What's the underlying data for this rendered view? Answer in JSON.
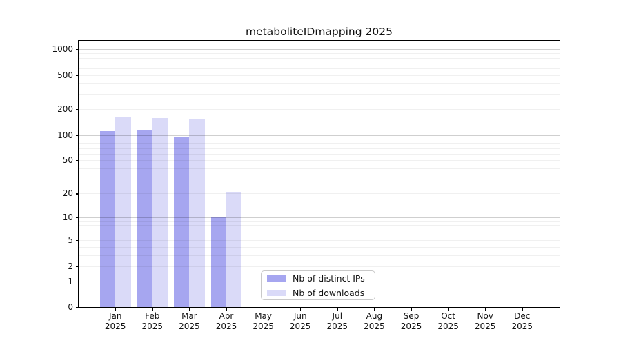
{
  "chart_data": {
    "type": "bar",
    "title": "metaboliteIDmapping 2025",
    "categories": [
      {
        "month": "Jan",
        "year": "2025"
      },
      {
        "month": "Feb",
        "year": "2025"
      },
      {
        "month": "Mar",
        "year": "2025"
      },
      {
        "month": "Apr",
        "year": "2025"
      },
      {
        "month": "May",
        "year": "2025"
      },
      {
        "month": "Jun",
        "year": "2025"
      },
      {
        "month": "Jul",
        "year": "2025"
      },
      {
        "month": "Aug",
        "year": "2025"
      },
      {
        "month": "Sep",
        "year": "2025"
      },
      {
        "month": "Oct",
        "year": "2025"
      },
      {
        "month": "Nov",
        "year": "2025"
      },
      {
        "month": "Dec",
        "year": "2025"
      }
    ],
    "series": [
      {
        "name": "Nb of distinct IPs",
        "color": "#a6a6f0",
        "values": [
          110,
          112,
          94,
          10,
          0,
          0,
          0,
          0,
          0,
          0,
          0,
          0
        ]
      },
      {
        "name": "Nb of downloads",
        "color": "#dadaf8",
        "values": [
          165,
          157,
          154,
          21,
          0,
          0,
          0,
          0,
          0,
          0,
          0,
          0
        ]
      }
    ],
    "y_axis": {
      "scale": "log1p",
      "ticks": [
        0,
        1,
        2,
        5,
        10,
        20,
        50,
        100,
        200,
        500,
        1000
      ],
      "range": [
        0,
        1259
      ]
    },
    "grid": {
      "orientation": "horizontal",
      "major_lines": [
        1,
        10,
        100,
        1000
      ],
      "minor_multipliers": [
        2,
        3,
        4,
        5,
        6,
        7,
        8,
        9
      ]
    },
    "legend": {
      "position": "lower-center"
    }
  }
}
